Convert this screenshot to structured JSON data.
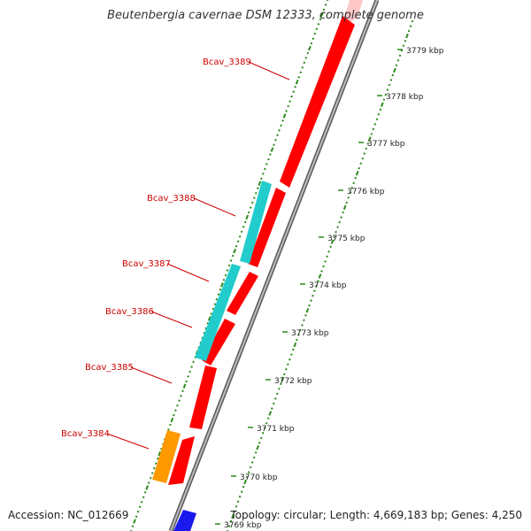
{
  "title": "Beutenbergia cavernae DSM 12333, complete genome",
  "footer": {
    "accession": "Accession: NC_012669",
    "summary": "Topology: circular; Length: 4,669,183 bp; Genes: 4,250"
  },
  "colors": {
    "forward_gene": "#ff0000",
    "forward_gene_faded": "#ffc8c8",
    "cyan_gene": "#22cccc",
    "orange_gene": "#ff9900",
    "blue_gene": "#1a1aee",
    "backbone": "#888888",
    "gc_ticks": "#2a8a1a",
    "label": "#cc0000"
  },
  "scale_labels": [
    "3779 kbp",
    "3778 kbp",
    "3777 kbp",
    "3776 kbp",
    "3775 kbp",
    "3774 kbp",
    "3773 kbp",
    "3772 kbp",
    "3771 kbp",
    "3770 kbp",
    "3769 kbp"
  ],
  "gene_labels": [
    "Bcav_3389",
    "Bcav_3388",
    "Bcav_3387",
    "Bcav_3386",
    "Bcav_3385",
    "Bcav_3384"
  ],
  "features": [
    {
      "type": "gene",
      "color": "forward_gene_faded"
    },
    {
      "type": "gene",
      "color": "forward_gene"
    },
    {
      "type": "gene",
      "color": "forward_gene"
    },
    {
      "type": "gene",
      "color": "forward_gene"
    },
    {
      "type": "gene",
      "color": "forward_gene"
    },
    {
      "type": "gene",
      "color": "forward_gene"
    },
    {
      "type": "gene",
      "color": "forward_gene"
    },
    {
      "type": "cds",
      "color": "cyan_gene"
    },
    {
      "type": "cds",
      "color": "cyan_gene"
    },
    {
      "type": "cds",
      "color": "orange_gene"
    },
    {
      "type": "cds",
      "color": "blue_gene"
    }
  ]
}
